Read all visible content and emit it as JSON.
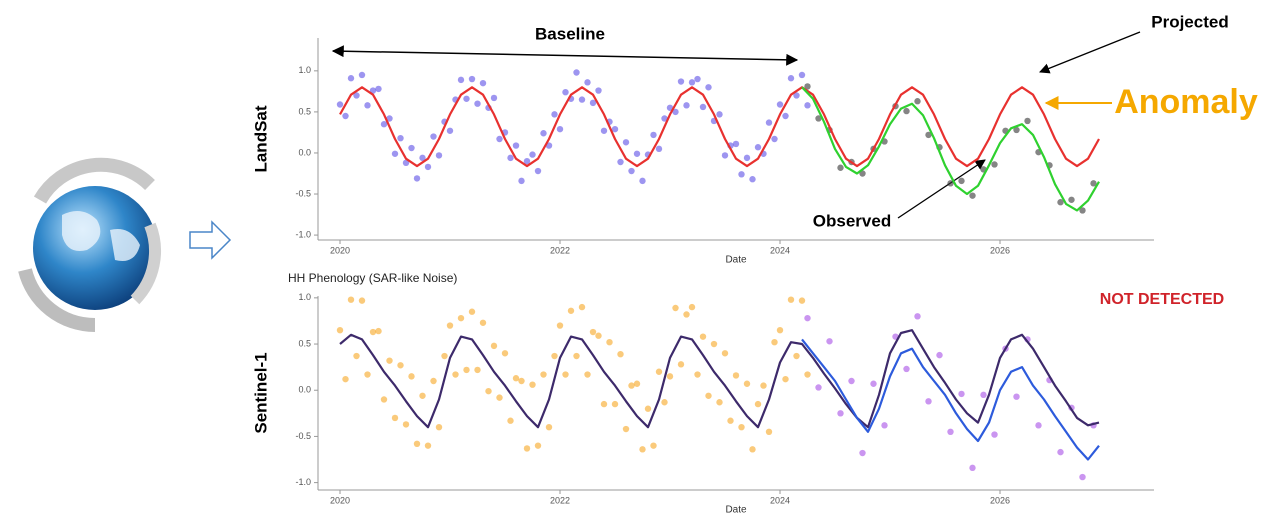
{
  "chart_data": [
    {
      "type": "line",
      "y_label": "LandSat",
      "x_label": "Date",
      "annotations": [
        "Baseline",
        "Projected",
        "Anomaly",
        "Observed"
      ],
      "xlim": [
        2019.8,
        2027.4
      ],
      "xticks": [
        2020,
        2022,
        2024,
        2026
      ],
      "ylim": [
        -1.06,
        1.4
      ],
      "yticks": [
        {
          "value": -1,
          "label": "-1.0"
        },
        -0.5,
        {
          "value": 0,
          "label": "0.0"
        },
        0.5,
        {
          "value": 1,
          "label": "1.0"
        }
      ],
      "series": [
        {
          "style": "points",
          "color": "#5b4fe6",
          "x": [
            2020,
            2020.05,
            2020.1,
            2020.15,
            2020.2,
            2020.25,
            2020.3,
            2020.35,
            2020.4,
            2020.45,
            2020.5,
            2020.55,
            2020.6,
            2020.65,
            2020.7,
            2020.75,
            2020.8,
            2020.85,
            2020.9,
            2020.95,
            2021,
            2021.05,
            2021.1,
            2021.15,
            2021.2,
            2021.25,
            2021.3,
            2021.35,
            2021.4,
            2021.45,
            2021.5,
            2021.55,
            2021.6,
            2021.65,
            2021.7,
            2021.75,
            2021.8,
            2021.85,
            2021.9,
            2021.95,
            2022,
            2022.05,
            2022.1,
            2022.15,
            2022.2,
            2022.25,
            2022.3,
            2022.35,
            2022.4,
            2022.45,
            2022.5,
            2022.55,
            2022.6,
            2022.65,
            2022.7,
            2022.75,
            2022.8,
            2022.85,
            2022.9,
            2022.95,
            2023,
            2023.05,
            2023.1,
            2023.15,
            2023.2,
            2023.25,
            2023.3,
            2023.35,
            2023.4,
            2023.45,
            2023.5,
            2023.55,
            2023.6,
            2023.65,
            2023.7,
            2023.75,
            2023.8,
            2023.85,
            2023.9,
            2023.95,
            2024,
            2024.05,
            2024.1,
            2024.15,
            2024.2,
            2024.25
          ],
          "values": [
            0.59,
            0.45,
            0.91,
            0.7,
            0.95,
            0.58,
            0.76,
            0.78,
            0.35,
            0.42,
            -0.01,
            0.18,
            -0.12,
            0.06,
            -0.31,
            -0.06,
            -0.17,
            0.2,
            -0.03,
            0.38,
            0.27,
            0.65,
            0.89,
            0.66,
            0.9,
            0.6,
            0.85,
            0.55,
            0.67,
            0.17,
            0.25,
            -0.06,
            0.09,
            -0.34,
            -0.1,
            -0.02,
            -0.22,
            0.24,
            0.09,
            0.47,
            0.29,
            0.74,
            0.66,
            0.98,
            0.65,
            0.86,
            0.61,
            0.76,
            0.27,
            0.38,
            0.29,
            -0.11,
            0.13,
            -0.22,
            -0.01,
            -0.34,
            -0.02,
            0.22,
            0.05,
            0.42,
            0.55,
            0.5,
            0.87,
            0.58,
            0.86,
            0.9,
            0.56,
            0.8,
            0.39,
            0.47,
            -0.03,
            0.09,
            0.11,
            -0.26,
            -0.06,
            -0.32,
            0.07,
            -0.01,
            0.37,
            0.17,
            0.59,
            0.45,
            0.91,
            0.7,
            0.95,
            0.58
          ]
        },
        {
          "style": "points",
          "color": "#333333",
          "x": [
            2024.25,
            2024.35,
            2024.45,
            2024.55,
            2024.65,
            2024.75,
            2024.85,
            2024.95,
            2025.05,
            2025.15,
            2025.25,
            2025.35,
            2025.45,
            2025.55,
            2025.65,
            2025.75,
            2025.85,
            2025.95,
            2026.05,
            2026.15,
            2026.25,
            2026.35,
            2026.45,
            2026.55,
            2026.65,
            2026.75,
            2026.85
          ],
          "values": [
            0.81,
            0.42,
            0.28,
            -0.18,
            -0.11,
            -0.25,
            0.05,
            0.14,
            0.57,
            0.51,
            0.63,
            0.22,
            0.07,
            -0.37,
            -0.34,
            -0.52,
            -0.2,
            -0.14,
            0.27,
            0.28,
            0.39,
            0.01,
            -0.15,
            -0.6,
            -0.57,
            -0.7,
            -0.37
          ]
        },
        {
          "style": "line",
          "color": "#e8312f",
          "x": [
            2020,
            2020.1,
            2020.2,
            2020.3,
            2020.4,
            2020.5,
            2020.6,
            2020.7,
            2020.8,
            2020.9,
            2021,
            2021.1,
            2021.2,
            2021.3,
            2021.4,
            2021.5,
            2021.6,
            2021.7,
            2021.8,
            2021.9,
            2022,
            2022.1,
            2022.2,
            2022.3,
            2022.4,
            2022.5,
            2022.6,
            2022.7,
            2022.8,
            2022.9,
            2023,
            2023.1,
            2023.2,
            2023.3,
            2023.4,
            2023.5,
            2023.6,
            2023.7,
            2023.8,
            2023.9,
            2024,
            2024.1,
            2024.2,
            2024.3,
            2024.4,
            2024.5,
            2024.6,
            2024.7,
            2024.8,
            2024.9,
            2025,
            2025.1,
            2025.2,
            2025.3,
            2025.4,
            2025.5,
            2025.6,
            2025.7,
            2025.8,
            2025.9,
            2026,
            2026.1,
            2026.2,
            2026.3,
            2026.4,
            2026.5,
            2026.6,
            2026.7,
            2026.8,
            2026.9
          ],
          "values": [
            0.47,
            0.71,
            0.8,
            0.71,
            0.47,
            0.17,
            -0.07,
            -0.16,
            -0.07,
            0.17,
            0.47,
            0.71,
            0.8,
            0.71,
            0.47,
            0.17,
            -0.07,
            -0.16,
            -0.07,
            0.17,
            0.47,
            0.71,
            0.8,
            0.71,
            0.47,
            0.17,
            -0.07,
            -0.16,
            -0.07,
            0.17,
            0.47,
            0.71,
            0.8,
            0.71,
            0.47,
            0.17,
            -0.07,
            -0.16,
            -0.07,
            0.17,
            0.47,
            0.71,
            0.8,
            0.71,
            0.47,
            0.17,
            -0.07,
            -0.16,
            -0.07,
            0.17,
            0.47,
            0.71,
            0.8,
            0.71,
            0.47,
            0.17,
            -0.07,
            -0.16,
            -0.07,
            0.17,
            0.47,
            0.71,
            0.8,
            0.71,
            0.47,
            0.17,
            -0.07,
            -0.16,
            -0.07,
            0.17
          ]
        },
        {
          "style": "line",
          "color": "#2fd12f",
          "x": [
            2024.2,
            2024.3,
            2024.4,
            2024.5,
            2024.6,
            2024.7,
            2024.8,
            2024.9,
            2025,
            2025.1,
            2025.2,
            2025.3,
            2025.4,
            2025.5,
            2025.6,
            2025.7,
            2025.8,
            2025.9,
            2026,
            2026.1,
            2026.2,
            2026.3,
            2026.4,
            2026.5,
            2026.6,
            2026.7,
            2026.8,
            2026.9
          ],
          "values": [
            0.8,
            0.66,
            0.38,
            0.05,
            -0.17,
            -0.25,
            -0.15,
            0.08,
            0.35,
            0.54,
            0.6,
            0.46,
            0.18,
            -0.15,
            -0.4,
            -0.5,
            -0.4,
            -0.15,
            0.12,
            0.3,
            0.35,
            0.22,
            -0.05,
            -0.38,
            -0.62,
            -0.7,
            -0.58,
            -0.35
          ]
        }
      ]
    },
    {
      "type": "line",
      "title": "HH Phenology (SAR-like Noise)",
      "y_label": "Sentinel-1",
      "x_label": "Date",
      "annotations": [
        "NOT DETECTED"
      ],
      "xlim": [
        2019.8,
        2027.4
      ],
      "xticks": [
        2020,
        2022,
        2024,
        2026
      ],
      "ylim": [
        -1.08,
        1.02
      ],
      "yticks": [
        {
          "value": -1,
          "label": "-1.0"
        },
        -0.5,
        {
          "value": 0,
          "label": "0.0"
        },
        0.5,
        {
          "value": 1,
          "label": "1.0"
        }
      ],
      "series": [
        {
          "style": "points",
          "color": "#f6a623",
          "x": [
            2020,
            2020.05,
            2020.1,
            2020.15,
            2020.2,
            2020.25,
            2020.3,
            2020.35,
            2020.4,
            2020.45,
            2020.5,
            2020.55,
            2020.6,
            2020.65,
            2020.7,
            2020.75,
            2020.8,
            2020.85,
            2020.9,
            2020.95,
            2021,
            2021.05,
            2021.1,
            2021.15,
            2021.2,
            2021.25,
            2021.3,
            2021.35,
            2021.4,
            2021.45,
            2021.5,
            2021.55,
            2021.6,
            2021.65,
            2021.7,
            2021.75,
            2021.8,
            2021.85,
            2021.9,
            2021.95,
            2022,
            2022.05,
            2022.1,
            2022.15,
            2022.2,
            2022.25,
            2022.3,
            2022.35,
            2022.4,
            2022.45,
            2022.5,
            2022.55,
            2022.6,
            2022.65,
            2022.7,
            2022.75,
            2022.8,
            2022.85,
            2022.9,
            2022.95,
            2023,
            2023.05,
            2023.1,
            2023.15,
            2023.2,
            2023.25,
            2023.3,
            2023.35,
            2023.4,
            2023.45,
            2023.5,
            2023.55,
            2023.6,
            2023.65,
            2023.7,
            2023.75,
            2023.8,
            2023.85,
            2023.9,
            2023.95,
            2024,
            2024.05,
            2024.1,
            2024.15,
            2024.2,
            2024.25
          ],
          "values": [
            0.65,
            0.12,
            0.98,
            0.37,
            0.97,
            0.17,
            0.63,
            0.64,
            -0.1,
            0.32,
            -0.3,
            0.27,
            -0.37,
            0.15,
            -0.58,
            -0.06,
            -0.6,
            0.1,
            -0.4,
            0.37,
            0.7,
            0.17,
            0.78,
            0.22,
            0.85,
            0.22,
            0.73,
            -0.01,
            0.48,
            -0.08,
            0.4,
            -0.33,
            0.13,
            0.1,
            -0.63,
            0.06,
            -0.6,
            0.17,
            -0.4,
            0.37,
            0.7,
            0.17,
            0.86,
            0.37,
            0.9,
            0.17,
            0.63,
            0.59,
            -0.15,
            0.52,
            -0.15,
            0.39,
            -0.42,
            0.05,
            0.07,
            -0.64,
            -0.2,
            -0.6,
            0.2,
            -0.13,
            0.15,
            0.89,
            0.28,
            0.82,
            0.9,
            0.17,
            0.58,
            -0.06,
            0.5,
            -0.13,
            0.4,
            -0.33,
            0.16,
            -0.4,
            0.07,
            -0.64,
            -0.15,
            0.05,
            -0.45,
            0.52,
            0.65,
            0.12,
            0.98,
            0.37,
            0.97,
            0.17
          ]
        },
        {
          "style": "points",
          "color": "#a64fe6",
          "x": [
            2024.25,
            2024.35,
            2024.45,
            2024.55,
            2024.65,
            2024.75,
            2024.85,
            2024.95,
            2025.05,
            2025.15,
            2025.25,
            2025.35,
            2025.45,
            2025.55,
            2025.65,
            2025.75,
            2025.85,
            2025.95,
            2026.05,
            2026.15,
            2026.25,
            2026.35,
            2026.45,
            2026.55,
            2026.65,
            2026.75,
            2026.85
          ],
          "values": [
            0.78,
            0.03,
            0.53,
            -0.25,
            0.1,
            -0.68,
            0.07,
            -0.38,
            0.58,
            0.23,
            0.8,
            -0.12,
            0.38,
            -0.45,
            -0.04,
            -0.84,
            -0.05,
            -0.48,
            0.45,
            -0.07,
            0.55,
            -0.38,
            0.11,
            -0.67,
            -0.19,
            -0.94,
            -0.38
          ]
        },
        {
          "style": "line",
          "color": "#3d2a6b",
          "x": [
            2020,
            2020.1,
            2020.2,
            2020.3,
            2020.4,
            2020.5,
            2020.6,
            2020.7,
            2020.8,
            2020.9,
            2021,
            2021.1,
            2021.2,
            2021.3,
            2021.4,
            2021.5,
            2021.6,
            2021.7,
            2021.8,
            2021.9,
            2022,
            2022.1,
            2022.2,
            2022.3,
            2022.4,
            2022.5,
            2022.6,
            2022.7,
            2022.8,
            2022.9,
            2023,
            2023.1,
            2023.2,
            2023.3,
            2023.4,
            2023.5,
            2023.6,
            2023.7,
            2023.8,
            2023.9,
            2024,
            2024.1,
            2024.2,
            2024.3,
            2024.4,
            2024.5,
            2024.6,
            2024.7,
            2024.8,
            2024.9,
            2025,
            2025.1,
            2025.2,
            2025.3,
            2025.4,
            2025.5,
            2025.6,
            2025.7,
            2025.8,
            2025.9,
            2026,
            2026.1,
            2026.2,
            2026.3,
            2026.4,
            2026.5,
            2026.6,
            2026.7,
            2026.8,
            2026.9
          ],
          "values": [
            0.5,
            0.6,
            0.55,
            0.38,
            0.2,
            0.05,
            -0.12,
            -0.28,
            -0.4,
            -0.1,
            0.35,
            0.58,
            0.55,
            0.38,
            0.2,
            0.05,
            -0.12,
            -0.28,
            -0.4,
            -0.1,
            0.35,
            0.58,
            0.55,
            0.38,
            0.2,
            0.05,
            -0.12,
            -0.28,
            -0.4,
            -0.1,
            0.35,
            0.58,
            0.55,
            0.38,
            0.2,
            0.05,
            -0.12,
            -0.28,
            -0.4,
            -0.1,
            0.3,
            0.52,
            0.5,
            0.35,
            0.18,
            0.02,
            -0.15,
            -0.3,
            -0.4,
            -0.05,
            0.4,
            0.62,
            0.65,
            0.45,
            0.25,
            0.08,
            -0.1,
            -0.25,
            -0.35,
            -0.05,
            0.35,
            0.55,
            0.6,
            0.45,
            0.25,
            0.05,
            -0.12,
            -0.3,
            -0.38,
            -0.35
          ]
        },
        {
          "style": "line",
          "color": "#2d5bdc",
          "x": [
            2024.2,
            2024.3,
            2024.4,
            2024.5,
            2024.6,
            2024.7,
            2024.8,
            2024.9,
            2025,
            2025.1,
            2025.2,
            2025.3,
            2025.4,
            2025.5,
            2025.6,
            2025.7,
            2025.8,
            2025.9,
            2026,
            2026.1,
            2026.2,
            2026.3,
            2026.4,
            2026.5,
            2026.6,
            2026.7,
            2026.8,
            2026.9
          ],
          "values": [
            0.55,
            0.4,
            0.25,
            0.1,
            -0.1,
            -0.3,
            -0.45,
            -0.2,
            0.15,
            0.4,
            0.45,
            0.25,
            0.1,
            -0.05,
            -0.25,
            -0.42,
            -0.55,
            -0.35,
            0,
            0.2,
            0.25,
            0.05,
            -0.1,
            -0.28,
            -0.45,
            -0.62,
            -0.75,
            -0.6
          ]
        }
      ]
    }
  ]
}
